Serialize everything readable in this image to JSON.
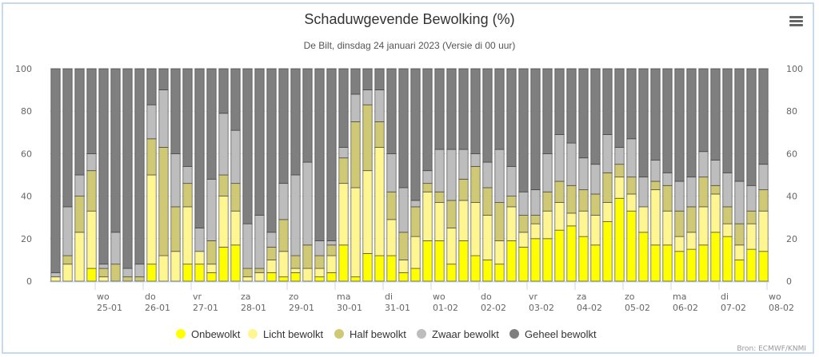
{
  "chart_data": {
    "type": "bar",
    "stacked": true,
    "title": "Schaduwgevende Bewolking (%)",
    "subtitle": "De Bilt, dinsdag 24 januari 2023 (Versie di 00 uur)",
    "xlabel": "",
    "ylabel": "",
    "ylim": [
      0,
      100
    ],
    "yticks": [
      0,
      20,
      40,
      60,
      80,
      100
    ],
    "grid": true,
    "legend_position": "bottom",
    "credit": "Bron: ECMWF/KNMI",
    "x_tick_labels": [
      {
        "day": "wo",
        "date": "25-01",
        "bar_index": 4
      },
      {
        "day": "do",
        "date": "26-01",
        "bar_index": 8
      },
      {
        "day": "vr",
        "date": "27-01",
        "bar_index": 12
      },
      {
        "day": "za",
        "date": "28-01",
        "bar_index": 16
      },
      {
        "day": "zo",
        "date": "29-01",
        "bar_index": 20
      },
      {
        "day": "ma",
        "date": "30-01",
        "bar_index": 24
      },
      {
        "day": "di",
        "date": "31-01",
        "bar_index": 28
      },
      {
        "day": "wo",
        "date": "01-02",
        "bar_index": 32
      },
      {
        "day": "do",
        "date": "02-02",
        "bar_index": 36
      },
      {
        "day": "vr",
        "date": "03-02",
        "bar_index": 40
      },
      {
        "day": "za",
        "date": "04-02",
        "bar_index": 44
      },
      {
        "day": "zo",
        "date": "05-02",
        "bar_index": 48
      },
      {
        "day": "ma",
        "date": "06-02",
        "bar_index": 52
      },
      {
        "day": "di",
        "date": "07-02",
        "bar_index": 56
      },
      {
        "day": "wo",
        "date": "08-02",
        "bar_index": 60
      }
    ],
    "series": [
      {
        "name": "Onbewolkt",
        "color": "#ffff00",
        "values": [
          0,
          0,
          0,
          6,
          0,
          0,
          0,
          0,
          8,
          0,
          0,
          8,
          8,
          4,
          16,
          17,
          0,
          0,
          4,
          2,
          4,
          0,
          2,
          4,
          17,
          2,
          13,
          12,
          12,
          4,
          6,
          19,
          19,
          8,
          19,
          12,
          10,
          8,
          19,
          16,
          20,
          20,
          24,
          26,
          21,
          17,
          28,
          39,
          33,
          23,
          17,
          17,
          14,
          15,
          17,
          23,
          21,
          10,
          15,
          14
        ]
      },
      {
        "name": "Licht bewolkt",
        "color": "#fff591",
        "values": [
          2,
          8,
          23,
          27,
          2,
          0,
          0,
          0,
          42,
          12,
          14,
          27,
          6,
          4,
          24,
          16,
          2,
          4,
          6,
          12,
          2,
          6,
          4,
          8,
          29,
          42,
          39,
          51,
          17,
          6,
          15,
          23,
          18,
          17,
          19,
          25,
          21,
          11,
          16,
          7,
          7,
          13,
          13,
          6,
          12,
          14,
          9,
          10,
          8,
          12,
          26,
          16,
          7,
          8,
          18,
          18,
          6,
          7,
          12,
          19
        ]
      },
      {
        "name": "Half bewolkt",
        "color": "#cfc874",
        "values": [
          0,
          4,
          17,
          19,
          4,
          8,
          2,
          2,
          17,
          51,
          21,
          11,
          0,
          11,
          10,
          13,
          4,
          2,
          6,
          15,
          6,
          11,
          6,
          5,
          12,
          31,
          31,
          12,
          13,
          13,
          14,
          4,
          5,
          13,
          10,
          17,
          13,
          18,
          5,
          8,
          4,
          9,
          10,
          13,
          10,
          10,
          14,
          6,
          8,
          0,
          4,
          12,
          12,
          12,
          14,
          4,
          8,
          10,
          6,
          10
        ]
      },
      {
        "name": "Zwaar bewolkt",
        "color": "#bdbdbd",
        "values": [
          2,
          23,
          10,
          8,
          2,
          15,
          4,
          6,
          16,
          27,
          25,
          8,
          11,
          29,
          29,
          25,
          21,
          25,
          7,
          17,
          38,
          39,
          7,
          2,
          5,
          13,
          7,
          15,
          18,
          21,
          3,
          6,
          20,
          24,
          14,
          6,
          12,
          25,
          14,
          11,
          12,
          18,
          22,
          20,
          15,
          14,
          18,
          8,
          18,
          14,
          10,
          6,
          14,
          14,
          12,
          12,
          16,
          20,
          12,
          12
        ]
      },
      {
        "name": "Geheel bewolkt",
        "color": "#7f7f7f",
        "values": [
          96,
          65,
          50,
          40,
          92,
          77,
          94,
          92,
          17,
          10,
          40,
          46,
          75,
          52,
          21,
          29,
          73,
          69,
          77,
          54,
          50,
          44,
          81,
          81,
          37,
          12,
          10,
          10,
          40,
          56,
          62,
          48,
          38,
          38,
          38,
          40,
          44,
          38,
          46,
          58,
          57,
          40,
          31,
          35,
          42,
          45,
          31,
          37,
          33,
          51,
          43,
          49,
          53,
          51,
          39,
          43,
          49,
          53,
          55,
          45
        ]
      }
    ]
  },
  "menu": {
    "icon": "hamburger-menu-icon",
    "label": "Chart context menu"
  }
}
